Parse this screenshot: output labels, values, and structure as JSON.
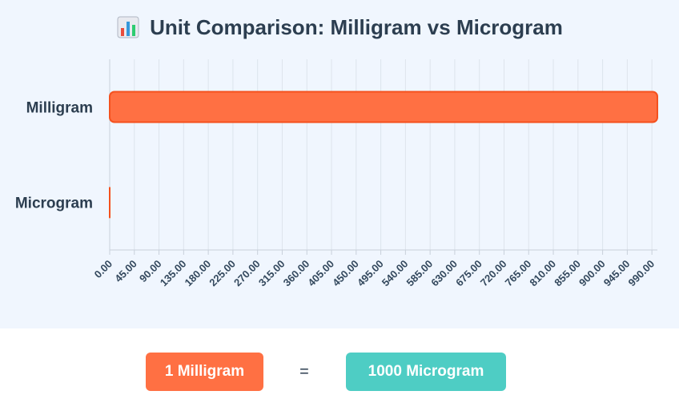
{
  "colors": {
    "bar_fill": "#ff7043",
    "bar_stroke": "#f4511e",
    "left_pill": "#ff7043",
    "right_pill": "#4ecdc4",
    "panel_bg": "#f0f6fe",
    "grid": "#dde4ec"
  },
  "header": {
    "icon": "bar-chart-icon",
    "title": "Unit Comparison: Milligram vs Microgram"
  },
  "chart_data": {
    "type": "bar",
    "orientation": "horizontal",
    "title": "Unit Comparison: Milligram vs Microgram",
    "categories": [
      "Milligram",
      "Microgram"
    ],
    "values": [
      1000,
      0.001
    ],
    "xlim": [
      0,
      1000
    ],
    "xticks": [
      "0.00",
      "45.00",
      "90.00",
      "135.00",
      "180.00",
      "225.00",
      "270.00",
      "315.00",
      "360.00",
      "405.00",
      "450.00",
      "495.00",
      "540.00",
      "585.00",
      "630.00",
      "675.00",
      "720.00",
      "765.00",
      "810.00",
      "855.00",
      "900.00",
      "945.00",
      "990.00"
    ],
    "grid": true,
    "legend": "none"
  },
  "equation": {
    "left": "1 Milligram",
    "operator": "=",
    "right": "1000 Microgram"
  }
}
